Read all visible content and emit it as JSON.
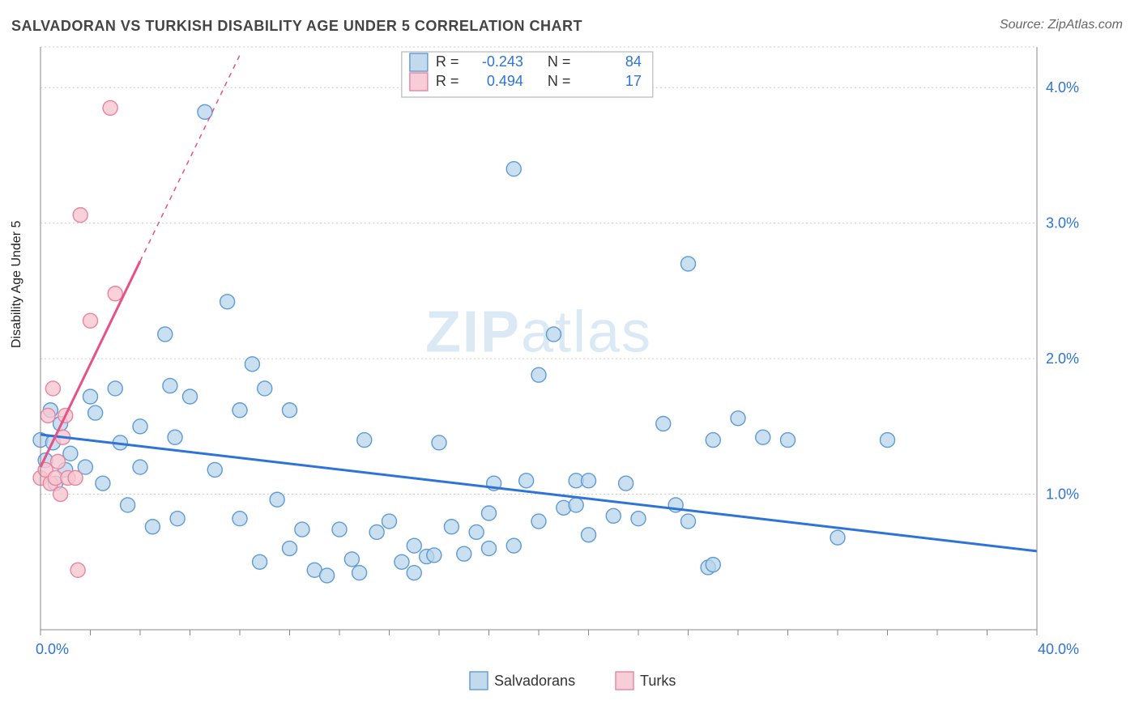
{
  "title": "SALVADORAN VS TURKISH DISABILITY AGE UNDER 5 CORRELATION CHART",
  "source_label": "Source: ZipAtlas.com",
  "ylabel": "Disability Age Under 5",
  "watermark": {
    "prefix": "ZIP",
    "suffix": "atlas"
  },
  "chart": {
    "type": "scatter",
    "xlim": [
      0,
      40
    ],
    "ylim": [
      0,
      4.3
    ],
    "background_color": "#ffffff",
    "grid_color": "#cccccc",
    "y_ticks": [
      1.0,
      2.0,
      3.0,
      4.0
    ],
    "y_tick_labels": [
      "1.0%",
      "2.0%",
      "3.0%",
      "4.0%"
    ],
    "x_major_ticks": [
      0,
      40
    ],
    "x_major_labels": [
      "0.0%",
      "40.0%"
    ],
    "x_minor_tick_step": 2,
    "marker_radius": 9,
    "marker_stroke_width": 1.4,
    "series": [
      {
        "name": "Salvadorans",
        "fill": "#b8d4ea",
        "stroke": "#5d9bd4",
        "opacity": 0.75,
        "legend_R": "-0.243",
        "legend_N": "84",
        "trend": {
          "x1": 0,
          "y1": 1.44,
          "x2": 40,
          "y2": 0.58,
          "color": "#2d74d6",
          "width": 3
        },
        "points": [
          [
            0.0,
            1.4
          ],
          [
            0.2,
            1.25
          ],
          [
            0.4,
            1.62
          ],
          [
            0.5,
            1.38
          ],
          [
            0.6,
            1.08
          ],
          [
            0.8,
            1.52
          ],
          [
            1.0,
            1.18
          ],
          [
            1.2,
            1.3
          ],
          [
            1.8,
            1.2
          ],
          [
            2.0,
            1.72
          ],
          [
            2.2,
            1.6
          ],
          [
            2.5,
            1.08
          ],
          [
            3.0,
            1.78
          ],
          [
            3.2,
            1.38
          ],
          [
            3.5,
            0.92
          ],
          [
            4.0,
            1.5
          ],
          [
            4.0,
            1.2
          ],
          [
            4.5,
            0.76
          ],
          [
            5.0,
            2.18
          ],
          [
            5.2,
            1.8
          ],
          [
            5.4,
            1.42
          ],
          [
            5.5,
            0.82
          ],
          [
            6.0,
            1.72
          ],
          [
            6.6,
            3.82
          ],
          [
            7.0,
            1.18
          ],
          [
            7.5,
            2.42
          ],
          [
            8.0,
            1.62
          ],
          [
            8.0,
            0.82
          ],
          [
            8.5,
            1.96
          ],
          [
            8.8,
            0.5
          ],
          [
            9.0,
            1.78
          ],
          [
            9.5,
            0.96
          ],
          [
            10.0,
            1.62
          ],
          [
            10.0,
            0.6
          ],
          [
            10.5,
            0.74
          ],
          [
            11.0,
            0.44
          ],
          [
            11.5,
            0.4
          ],
          [
            12.0,
            0.74
          ],
          [
            12.5,
            0.52
          ],
          [
            12.8,
            0.42
          ],
          [
            13.0,
            1.4
          ],
          [
            13.5,
            0.72
          ],
          [
            14.0,
            0.8
          ],
          [
            14.5,
            0.5
          ],
          [
            15.0,
            0.62
          ],
          [
            15.0,
            0.42
          ],
          [
            15.5,
            0.54
          ],
          [
            15.8,
            0.55
          ],
          [
            16.0,
            1.38
          ],
          [
            16.5,
            0.76
          ],
          [
            17.0,
            0.56
          ],
          [
            17.5,
            0.72
          ],
          [
            18.0,
            0.6
          ],
          [
            18.0,
            0.86
          ],
          [
            18.2,
            1.08
          ],
          [
            19.0,
            3.4
          ],
          [
            19.0,
            0.62
          ],
          [
            19.5,
            1.1
          ],
          [
            20.0,
            1.88
          ],
          [
            20.0,
            0.8
          ],
          [
            20.6,
            2.18
          ],
          [
            21.0,
            0.9
          ],
          [
            21.5,
            0.92
          ],
          [
            21.5,
            1.1
          ],
          [
            22.0,
            0.7
          ],
          [
            22.0,
            1.1
          ],
          [
            23.0,
            0.84
          ],
          [
            23.5,
            1.08
          ],
          [
            24.0,
            0.82
          ],
          [
            25.0,
            1.52
          ],
          [
            25.5,
            0.92
          ],
          [
            26.0,
            2.7
          ],
          [
            26.0,
            0.8
          ],
          [
            26.8,
            0.46
          ],
          [
            27.0,
            1.4
          ],
          [
            27.0,
            0.48
          ],
          [
            28.0,
            1.56
          ],
          [
            29.0,
            1.42
          ],
          [
            30.0,
            1.4
          ],
          [
            32.0,
            0.68
          ],
          [
            34.0,
            1.4
          ]
        ]
      },
      {
        "name": "Turks",
        "fill": "#f6c5d0",
        "stroke": "#e983a0",
        "opacity": 0.8,
        "legend_R": "0.494",
        "legend_N": "17",
        "trend": {
          "color": "#e65288",
          "solid": {
            "x1": 0,
            "y1": 1.2,
            "x2": 4.0,
            "y2": 2.72,
            "width": 3
          },
          "dashed": {
            "x1": 4.0,
            "y1": 2.72,
            "x2": 8.0,
            "y2": 4.24,
            "width": 1.5
          }
        },
        "points": [
          [
            0.0,
            1.12
          ],
          [
            0.2,
            1.18
          ],
          [
            0.3,
            1.58
          ],
          [
            0.4,
            1.08
          ],
          [
            0.5,
            1.78
          ],
          [
            0.6,
            1.12
          ],
          [
            0.7,
            1.24
          ],
          [
            0.8,
            1.0
          ],
          [
            0.9,
            1.42
          ],
          [
            1.0,
            1.58
          ],
          [
            1.1,
            1.12
          ],
          [
            1.4,
            1.12
          ],
          [
            1.6,
            3.06
          ],
          [
            2.0,
            2.28
          ],
          [
            2.8,
            3.85
          ],
          [
            3.0,
            2.48
          ],
          [
            1.5,
            0.44
          ]
        ]
      }
    ],
    "bottom_legend": {
      "items": [
        {
          "label": "Salvadorans",
          "fill": "#b8d4ea",
          "stroke": "#5d9bd4"
        },
        {
          "label": "Turks",
          "fill": "#f6c5d0",
          "stroke": "#e983a0"
        }
      ]
    }
  }
}
